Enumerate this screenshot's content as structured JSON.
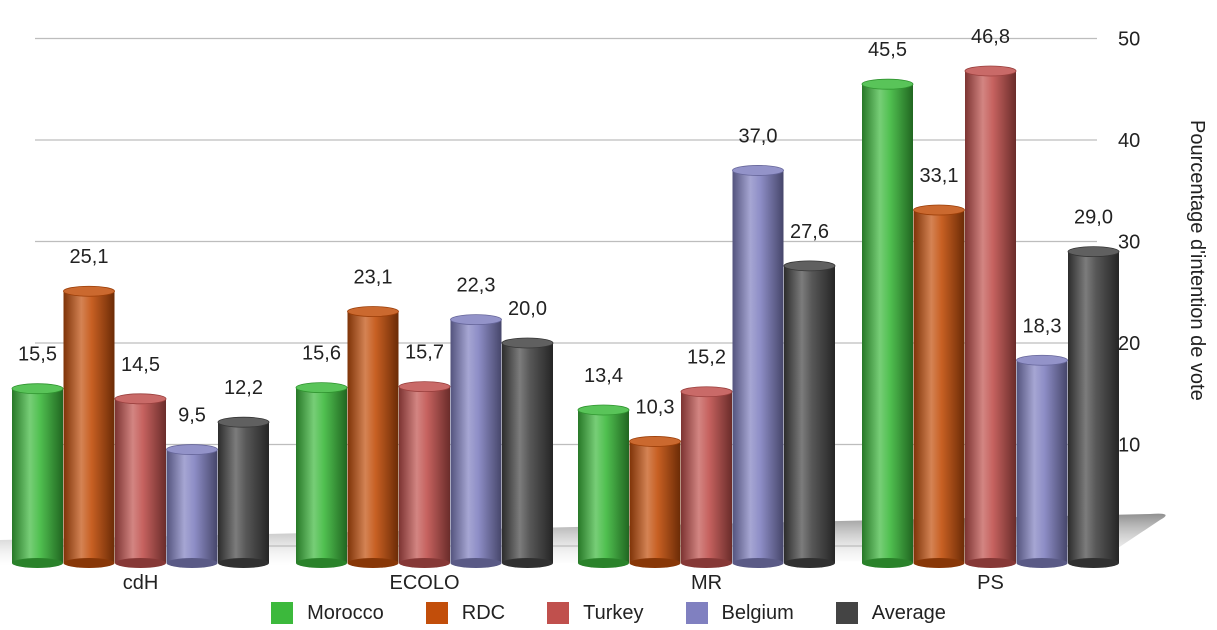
{
  "chart_data": {
    "type": "bar",
    "categories": [
      "cdH",
      "ECOLO",
      "MR",
      "PS"
    ],
    "series": [
      {
        "name": "Morocco",
        "values": [
          15.5,
          15.6,
          13.4,
          45.5
        ],
        "labels": [
          "15,5",
          "15,6",
          "13,4",
          "45,5"
        ]
      },
      {
        "name": "RDC",
        "values": [
          25.1,
          23.1,
          10.3,
          33.1
        ],
        "labels": [
          "25,1",
          "23,1",
          "10,3",
          "33,1"
        ]
      },
      {
        "name": "Turkey",
        "values": [
          14.5,
          15.7,
          15.2,
          46.8
        ],
        "labels": [
          "14,5",
          "15,7",
          "15,2",
          "46,8"
        ]
      },
      {
        "name": "Belgium",
        "values": [
          9.5,
          22.3,
          37.0,
          18.3
        ],
        "labels": [
          "9,5",
          "22,3",
          "37,0",
          "18,3"
        ]
      },
      {
        "name": "Average",
        "values": [
          12.2,
          20.0,
          27.6,
          29.0
        ],
        "labels": [
          "12,2",
          "20,0",
          "27,6",
          "29,0"
        ]
      }
    ],
    "colors": {
      "Morocco": "#3cb93c",
      "RDC": "#c24e0a",
      "Turkey": "#c0504d",
      "Belgium": "#8080c0",
      "Average": "#444444"
    },
    "ylabel": "Pourcentage d'intention de vote",
    "y_ticks": [
      "10",
      "20",
      "30",
      "40",
      "50"
    ],
    "ylim": [
      0,
      50
    ],
    "grid": true,
    "legend_position": "bottom",
    "value_labels_shown": true
  }
}
